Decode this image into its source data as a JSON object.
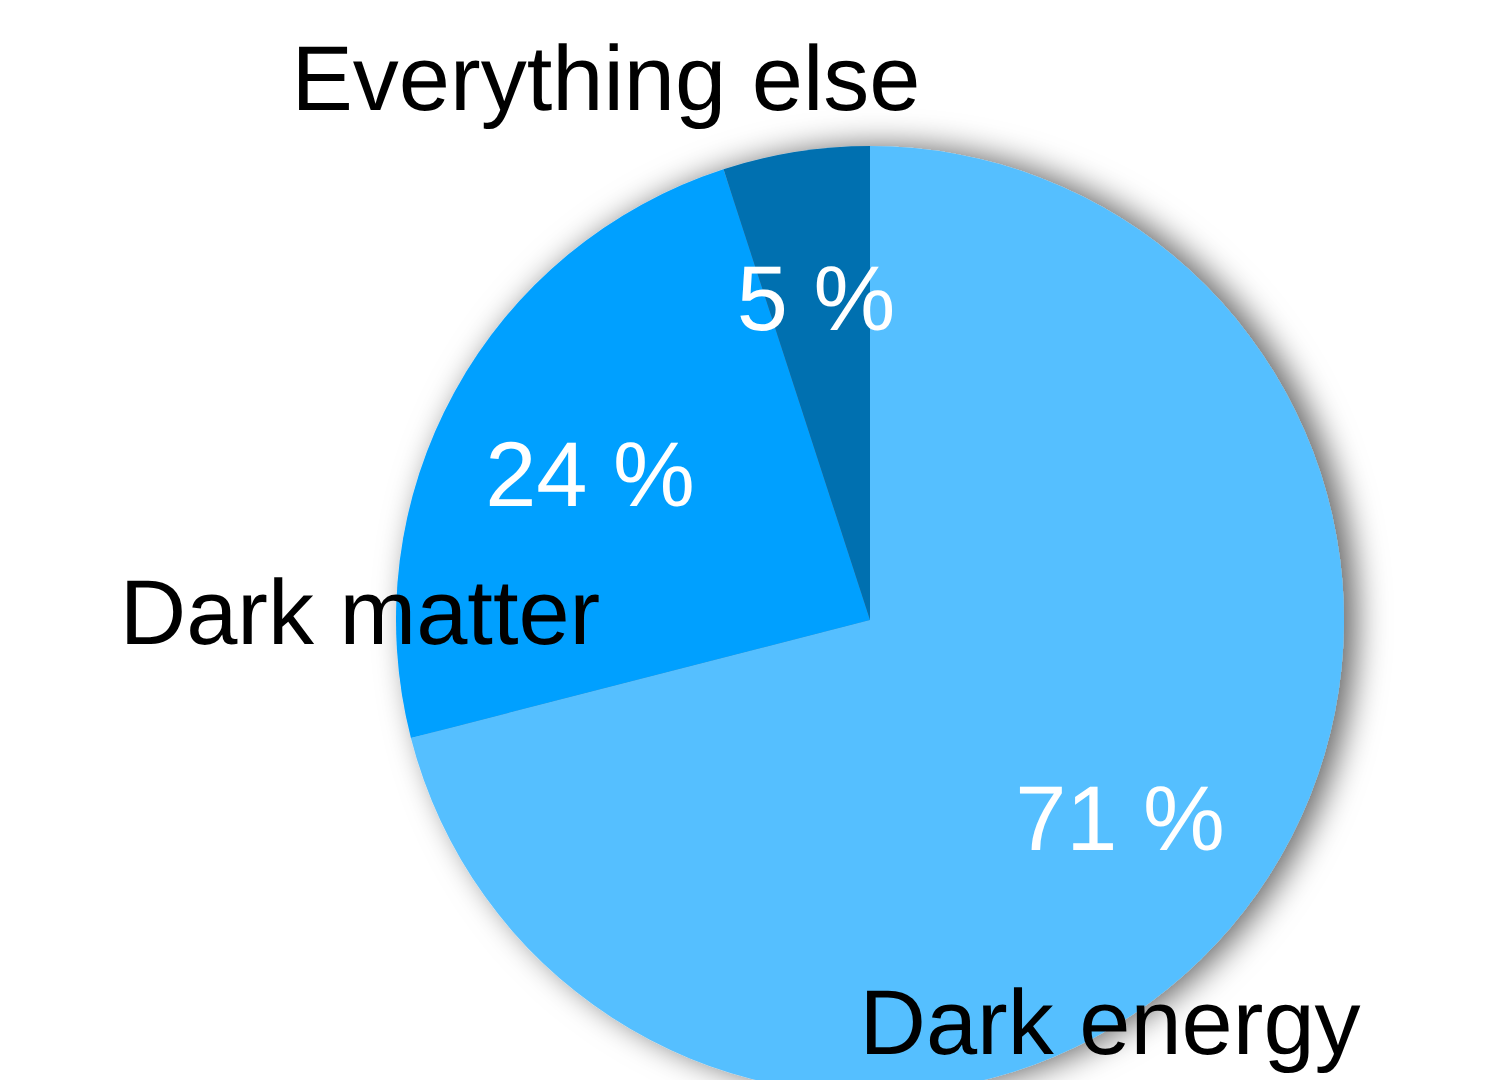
{
  "chart_data": {
    "type": "pie",
    "categories": [
      "Dark energy",
      "Dark matter",
      "Everything else"
    ],
    "values": [
      71,
      24,
      5
    ],
    "colors": [
      "#55bfff",
      "#00a0ff",
      "#0070b0"
    ],
    "value_labels": [
      "71 %",
      "24 %",
      "5 %"
    ]
  }
}
